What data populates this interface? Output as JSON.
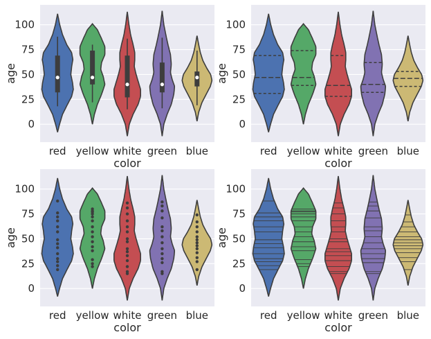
{
  "colors": {
    "red": "#4c72b0",
    "yellow": "#55a868",
    "white": "#c44e52",
    "green": "#8172b2",
    "blue": "#ccb974",
    "outline": "#3d3d3d",
    "background": "#eaeaf2"
  },
  "chart_data": [
    {
      "type": "violin",
      "inner": "box",
      "xlabel": "color",
      "ylabel": "age",
      "categories": [
        "red",
        "yellow",
        "white",
        "green",
        "blue"
      ],
      "ylim": [
        -18,
        120
      ],
      "yticks": [
        "0",
        "25",
        "50",
        "75",
        "100"
      ],
      "grid": true,
      "quartiles": [
        [
          32,
          47,
          69
        ],
        [
          40,
          47,
          74
        ],
        [
          27,
          40,
          69
        ],
        [
          32,
          40,
          62
        ],
        [
          38,
          47,
          53
        ]
      ],
      "whiskers": [
        [
          18,
          88
        ],
        [
          22,
          80
        ],
        [
          15,
          86
        ],
        [
          16,
          87
        ],
        [
          19,
          74
        ]
      ],
      "points": []
    },
    {
      "type": "violin",
      "inner": "quartile",
      "xlabel": "color",
      "ylabel": "age",
      "categories": [
        "red",
        "yellow",
        "white",
        "green",
        "blue"
      ],
      "ylim": [
        -18,
        120
      ],
      "yticks": [
        "0",
        "25",
        "50",
        "75",
        "100"
      ],
      "grid": true,
      "quartiles": [
        [
          31,
          47,
          69
        ],
        [
          39,
          47,
          74
        ],
        [
          28,
          39,
          69
        ],
        [
          32,
          40,
          62
        ],
        [
          38,
          46,
          53
        ]
      ],
      "whiskers": [],
      "points": []
    },
    {
      "type": "violin",
      "inner": "point",
      "xlabel": "color",
      "ylabel": "age",
      "categories": [
        "red",
        "yellow",
        "white",
        "green",
        "blue"
      ],
      "ylim": [
        -18,
        120
      ],
      "yticks": [
        "0",
        "25",
        "50",
        "75",
        "100"
      ],
      "grid": true,
      "quartiles": [],
      "whiskers": [],
      "points": [
        [
          88,
          76,
          72,
          68,
          62,
          57,
          49,
          45,
          41,
          35,
          30,
          27,
          23,
          19
        ],
        [
          80,
          78,
          77,
          75,
          72,
          68,
          62,
          57,
          52,
          47,
          42,
          38,
          29,
          25,
          22
        ],
        [
          86,
          81,
          75,
          68,
          62,
          57,
          50,
          47,
          40,
          37,
          33,
          28,
          22,
          17,
          15
        ],
        [
          87,
          83,
          78,
          71,
          62,
          58,
          52,
          46,
          40,
          35,
          30,
          26,
          17,
          15
        ],
        [
          74,
          67,
          62,
          57,
          52,
          49,
          46,
          43,
          40,
          36,
          31,
          27,
          19
        ]
      ]
    },
    {
      "type": "violin",
      "inner": "stick",
      "xlabel": "color",
      "ylabel": "age",
      "categories": [
        "red",
        "yellow",
        "white",
        "green",
        "blue"
      ],
      "ylim": [
        -18,
        120
      ],
      "yticks": [
        "0",
        "25",
        "50",
        "75",
        "100"
      ],
      "grid": true,
      "quartiles": [],
      "whiskers": [],
      "points": [
        [
          88,
          76,
          72,
          68,
          62,
          57,
          49,
          45,
          41,
          35,
          30,
          27,
          23,
          19
        ],
        [
          80,
          78,
          77,
          75,
          72,
          68,
          62,
          57,
          52,
          47,
          42,
          38,
          29,
          25,
          22
        ],
        [
          86,
          81,
          75,
          68,
          62,
          57,
          50,
          47,
          40,
          37,
          33,
          28,
          22,
          17,
          15
        ],
        [
          87,
          83,
          78,
          71,
          62,
          58,
          52,
          46,
          40,
          35,
          30,
          26,
          17,
          15
        ],
        [
          74,
          67,
          62,
          57,
          52,
          49,
          46,
          43,
          40,
          36,
          31,
          27,
          19
        ]
      ]
    }
  ]
}
